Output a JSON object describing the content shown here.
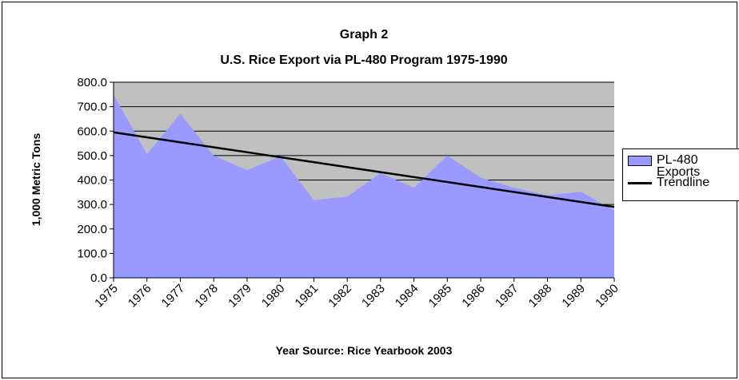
{
  "chart_data": {
    "type": "area",
    "title": "Graph 2",
    "subtitle": "U.S. Rice Export via PL-480 Program 1975-1990",
    "x_label": "Year Source: Rice Yearbook 2003",
    "y_label": "1,000 Metric Tons",
    "categories": [
      "1975",
      "1976",
      "1977",
      "1978",
      "1979",
      "1980",
      "1981",
      "1982",
      "1983",
      "1984",
      "1985",
      "1986",
      "1987",
      "1988",
      "1989",
      "1990"
    ],
    "series": [
      {
        "name": "PL-480 Exports",
        "color": "#9999ff",
        "values": [
          750,
          505,
          672,
          500,
          440,
          497,
          318,
          332,
          428,
          368,
          500,
          410,
          368,
          338,
          352,
          275
        ]
      },
      {
        "name": "Trendline",
        "color": "#000000",
        "values": [
          595,
          574.7,
          554.3,
          534,
          513.7,
          493.3,
          473,
          452.7,
          432.3,
          412,
          391.7,
          371.3,
          351,
          330.7,
          310.3,
          290
        ]
      }
    ],
    "ylim": [
      0,
      800
    ],
    "yticks": [
      {
        "value": 0,
        "label": "0.0"
      },
      {
        "value": 100,
        "label": "100.0"
      },
      {
        "value": 200,
        "label": "200.0"
      },
      {
        "value": 300,
        "label": "300.0"
      },
      {
        "value": 400,
        "label": "400.0"
      },
      {
        "value": 500,
        "label": "500.0"
      },
      {
        "value": 600,
        "label": "600.0"
      },
      {
        "value": 700,
        "label": "700.0"
      },
      {
        "value": 800,
        "label": "800.0"
      }
    ],
    "grid": true,
    "plot_background": "#c0c0c0"
  }
}
